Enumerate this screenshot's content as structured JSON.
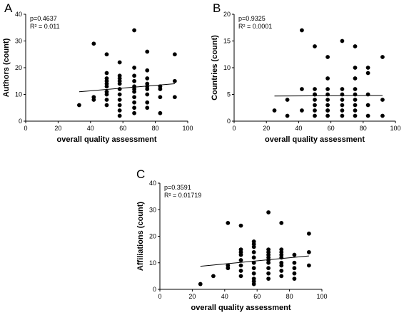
{
  "chart_data": [
    {
      "type": "scatter",
      "panel_label": "A",
      "xlabel": "overall quality assessment",
      "ylabel": "Authors (count)",
      "xlim": [
        0,
        100
      ],
      "ylim": [
        0,
        40
      ],
      "xticks": [
        0,
        20,
        40,
        60,
        80,
        100
      ],
      "yticks": [
        0,
        10,
        20,
        30,
        40
      ],
      "annotations": [
        "p=0.4637",
        "R² = 0.011"
      ],
      "regression_line": {
        "x": [
          33,
          92
        ],
        "y": [
          11.0,
          14.0
        ]
      },
      "points": {
        "x": [
          33,
          42,
          42,
          42,
          50,
          50,
          50,
          50,
          50,
          50,
          50,
          50,
          50,
          50,
          58,
          58,
          58,
          58,
          58,
          58,
          58,
          58,
          58,
          58,
          58,
          67,
          67,
          67,
          67,
          67,
          67,
          67,
          67,
          67,
          67,
          67,
          75,
          75,
          75,
          75,
          75,
          75,
          75,
          75,
          75,
          83,
          83,
          83,
          83,
          92,
          92,
          92
        ],
        "y": [
          6,
          8,
          9,
          29,
          6,
          8,
          10,
          11,
          13,
          14,
          15,
          16,
          18,
          25,
          2,
          4,
          6,
          8,
          10,
          12,
          14,
          15,
          16,
          17,
          22,
          3,
          5,
          7,
          9,
          11,
          12,
          13,
          15,
          17,
          20,
          34,
          5,
          7,
          10,
          12,
          13,
          14,
          16,
          19,
          26,
          3,
          9,
          12,
          13,
          9,
          15,
          25
        ]
      }
    },
    {
      "type": "scatter",
      "panel_label": "B",
      "xlabel": "overall quality assessment",
      "ylabel": "Countries (count)",
      "xlim": [
        0,
        100
      ],
      "ylim": [
        0,
        20
      ],
      "xticks": [
        0,
        20,
        40,
        60,
        80,
        100
      ],
      "yticks": [
        0,
        5,
        10,
        15,
        20
      ],
      "annotations": [
        "p=0.9325",
        "R² = 0.0001"
      ],
      "regression_line": {
        "x": [
          25,
          92
        ],
        "y": [
          4.7,
          4.8
        ]
      },
      "points": {
        "x": [
          25,
          33,
          33,
          42,
          42,
          42,
          50,
          50,
          50,
          50,
          50,
          50,
          50,
          50,
          58,
          58,
          58,
          58,
          58,
          58,
          58,
          58,
          58,
          67,
          67,
          67,
          67,
          67,
          67,
          67,
          75,
          75,
          75,
          75,
          75,
          75,
          75,
          75,
          75,
          83,
          83,
          83,
          83,
          83,
          92,
          92,
          92
        ],
        "y": [
          2,
          1,
          4,
          2,
          6,
          17,
          1,
          2,
          3,
          4,
          5,
          6,
          14,
          5,
          1,
          2,
          3,
          4,
          5,
          6,
          8,
          12,
          2,
          1,
          2,
          3,
          4,
          5,
          6,
          15,
          1,
          2,
          3,
          4,
          5,
          6,
          8,
          10,
          14,
          1,
          3,
          5,
          9,
          10,
          1,
          4,
          12
        ]
      }
    },
    {
      "type": "scatter",
      "panel_label": "C",
      "xlabel": "overall quality assessment",
      "ylabel": "Affiliations (count)",
      "xlim": [
        0,
        100
      ],
      "ylim": [
        0,
        40
      ],
      "xticks": [
        0,
        20,
        40,
        60,
        80,
        100
      ],
      "yticks": [
        0,
        10,
        20,
        30,
        40
      ],
      "annotations": [
        "p=0.3591",
        "R² = 0.01719"
      ],
      "regression_line": {
        "x": [
          25,
          92
        ],
        "y": [
          8.7,
          12.6
        ]
      },
      "points": {
        "x": [
          25,
          33,
          42,
          42,
          42,
          50,
          50,
          50,
          50,
          50,
          50,
          50,
          50,
          58,
          58,
          58,
          58,
          58,
          58,
          58,
          58,
          58,
          58,
          58,
          67,
          67,
          67,
          67,
          67,
          67,
          67,
          67,
          67,
          67,
          75,
          75,
          75,
          75,
          75,
          75,
          75,
          75,
          75,
          83,
          83,
          83,
          83,
          83,
          92,
          92,
          92
        ],
        "y": [
          2,
          5,
          8,
          9,
          25,
          5,
          7,
          9,
          11,
          13,
          14,
          15,
          24,
          2,
          3,
          4,
          6,
          8,
          10,
          12,
          14,
          16,
          17,
          18,
          4,
          6,
          8,
          10,
          11,
          12,
          13,
          14,
          15,
          29,
          5,
          7,
          9,
          10,
          12,
          13,
          14,
          15,
          25,
          4,
          6,
          8,
          10,
          13,
          9,
          14,
          21
        ]
      }
    }
  ]
}
